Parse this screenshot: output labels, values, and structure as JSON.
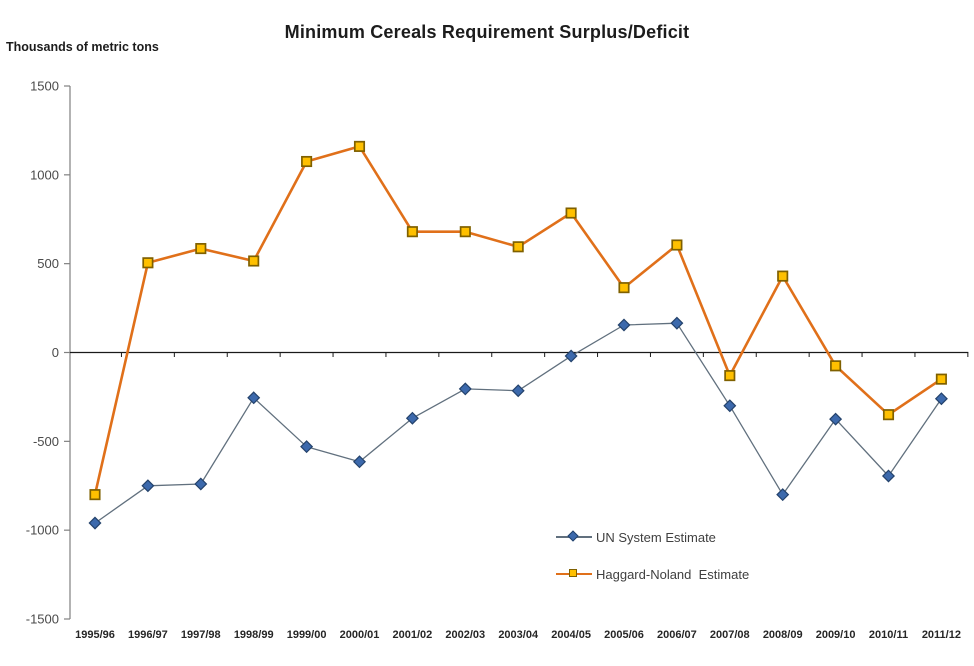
{
  "title": "Minimum Cereals Requirement Surplus/Deficit",
  "unit_label": "Thousands of metric tons",
  "chart_data": {
    "type": "line",
    "title": "Minimum Cereals Requirement Surplus/Deficit",
    "xlabel": "",
    "ylabel": "Thousands of metric tons",
    "ylim": [
      -1500,
      1500
    ],
    "yticks": [
      1500,
      1000,
      500,
      0,
      -500,
      -1000,
      -1500
    ],
    "grid": false,
    "zero_axis_line": true,
    "legend_position": "inside-bottom-right",
    "categories": [
      "1995/96",
      "1996/97",
      "1997/98",
      "1998/99",
      "1999/00",
      "2000/01",
      "2001/02",
      "2002/03",
      "2003/04",
      "2004/05",
      "2005/06",
      "2006/07",
      "2007/08",
      "2008/09",
      "2009/10",
      "2010/11",
      "2011/12"
    ],
    "series": [
      {
        "name": "UN System Estimate",
        "values": [
          -960,
          -750,
          -740,
          -255,
          -530,
          -615,
          -370,
          -205,
          -215,
          -20,
          155,
          165,
          -300,
          -800,
          -375,
          -695,
          -260
        ],
        "line_color": "#61707E",
        "line_width": 1.3,
        "marker": "diamond",
        "marker_fill": "#3C69AC",
        "marker_stroke": "#24426B"
      },
      {
        "name": "Haggard-Noland  Estimate",
        "values": [
          -800,
          505,
          585,
          515,
          1075,
          1160,
          680,
          680,
          595,
          785,
          365,
          605,
          -130,
          430,
          -75,
          -350,
          -150
        ],
        "line_color": "#E0701A",
        "line_width": 2.6,
        "marker": "square",
        "marker_fill": "#FFC000",
        "marker_stroke": "#7F6000"
      }
    ],
    "axis_colors": {
      "value_axis": "#808080",
      "zero_line": "#1A1A1A",
      "tick_label": "#4A4A4A",
      "category_label": "#262626"
    }
  }
}
